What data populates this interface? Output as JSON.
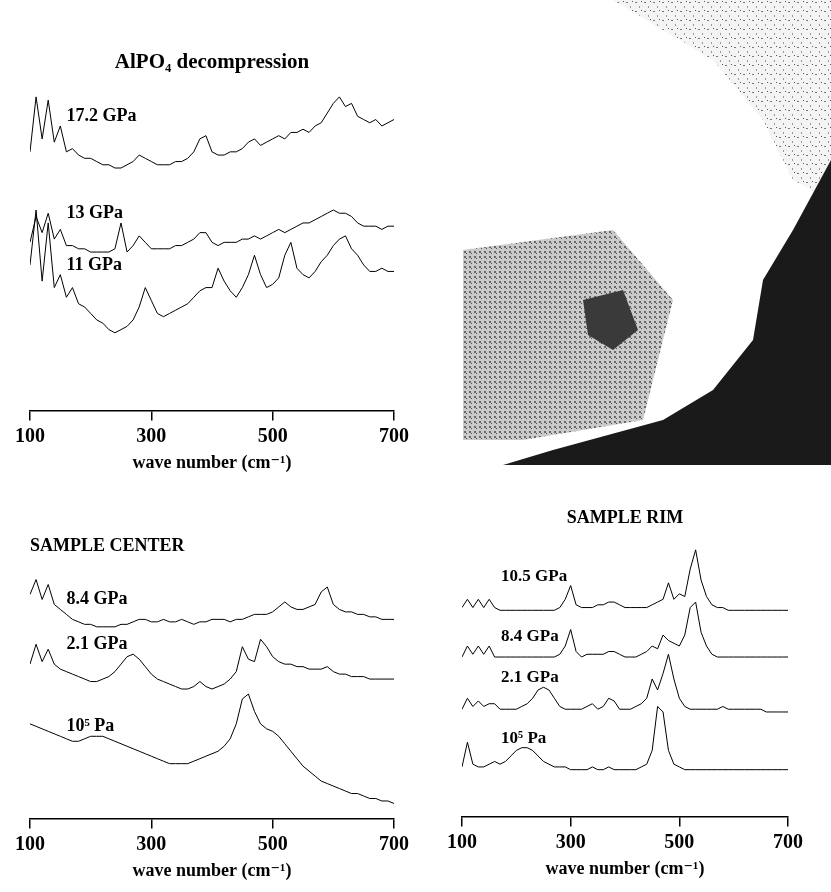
{
  "chart_data": [
    {
      "type": "line",
      "title": "AlPO₄ decompression",
      "x_label": "wave number (cm⁻¹)",
      "x": [
        100,
        110,
        120,
        130,
        140,
        150,
        160,
        170,
        180,
        190,
        200,
        210,
        220,
        230,
        240,
        250,
        260,
        270,
        280,
        290,
        300,
        310,
        320,
        330,
        340,
        350,
        360,
        370,
        380,
        390,
        400,
        410,
        420,
        430,
        440,
        450,
        460,
        470,
        480,
        490,
        500,
        510,
        520,
        530,
        540,
        550,
        560,
        570,
        580,
        590,
        600,
        610,
        620,
        630,
        640,
        650,
        660,
        670,
        680,
        690,
        700
      ],
      "series": [
        {
          "name": "17.2 GPa",
          "color": "#000000",
          "values": [
            80,
            97,
            84,
            96,
            83,
            88,
            80,
            81,
            79,
            78,
            78,
            77,
            76,
            76,
            75,
            75,
            76,
            77,
            79,
            78,
            77,
            76,
            76,
            76,
            77,
            77,
            78,
            80,
            84,
            85,
            80,
            79,
            79,
            80,
            80,
            81,
            83,
            84,
            82,
            83,
            84,
            85,
            84,
            86,
            86,
            87,
            86,
            88,
            89,
            92,
            95,
            97,
            94,
            95,
            91,
            90,
            89,
            90,
            88,
            89,
            90
          ]
        },
        {
          "name": "13 GPa",
          "color": "#000000",
          "values": [
            52,
            60,
            55,
            61,
            53,
            56,
            51,
            51,
            50,
            50,
            49,
            49,
            49,
            49,
            50,
            58,
            49,
            51,
            54,
            52,
            50,
            50,
            50,
            50,
            51,
            51,
            52,
            53,
            55,
            55,
            52,
            51,
            52,
            52,
            52,
            53,
            53,
            54,
            53,
            54,
            55,
            56,
            55,
            56,
            57,
            58,
            58,
            59,
            60,
            61,
            62,
            61,
            61,
            60,
            58,
            57,
            57,
            57,
            56,
            57,
            57
          ]
        },
        {
          "name": "11 GPa",
          "color": "#000000",
          "values": [
            45,
            62,
            40,
            58,
            38,
            42,
            35,
            38,
            33,
            32,
            30,
            28,
            27,
            25,
            24,
            25,
            26,
            28,
            32,
            38,
            34,
            30,
            29,
            30,
            31,
            32,
            33,
            35,
            37,
            38,
            38,
            44,
            40,
            37,
            35,
            38,
            42,
            48,
            42,
            38,
            39,
            41,
            48,
            52,
            44,
            42,
            41,
            43,
            46,
            48,
            51,
            53,
            54,
            50,
            48,
            45,
            43,
            43,
            44,
            43,
            43
          ]
        }
      ],
      "xlim": [
        100,
        700
      ],
      "xticks": [
        100,
        300,
        500,
        700
      ],
      "ylim": [
        0,
        100
      ],
      "tick_labels": "x",
      "grid": false
    },
    {
      "type": "line",
      "title": "SAMPLE CENTER",
      "x_label": "wave number (cm⁻¹)",
      "x": [
        100,
        110,
        120,
        130,
        140,
        150,
        160,
        170,
        180,
        190,
        200,
        210,
        220,
        230,
        240,
        250,
        260,
        270,
        280,
        290,
        300,
        310,
        320,
        330,
        340,
        350,
        360,
        370,
        380,
        390,
        400,
        410,
        420,
        430,
        440,
        450,
        460,
        470,
        480,
        490,
        500,
        510,
        520,
        530,
        540,
        550,
        560,
        570,
        580,
        590,
        600,
        610,
        620,
        630,
        640,
        650,
        660,
        670,
        680,
        690,
        700
      ],
      "series": [
        {
          "name": "8.4 GPa",
          "color": "#000000",
          "values": [
            90,
            96,
            88,
            94,
            86,
            84,
            82,
            80,
            79,
            78,
            78,
            77,
            77,
            77,
            77,
            78,
            78,
            79,
            80,
            80,
            79,
            79,
            80,
            79,
            79,
            80,
            79,
            78,
            79,
            79,
            80,
            80,
            80,
            79,
            80,
            80,
            81,
            82,
            82,
            82,
            83,
            85,
            87,
            85,
            84,
            84,
            85,
            86,
            91,
            93,
            86,
            84,
            83,
            83,
            82,
            82,
            81,
            81,
            80,
            80,
            80
          ]
        },
        {
          "name": "2.1 GPa",
          "color": "#000000",
          "values": [
            62,
            70,
            63,
            68,
            62,
            60,
            59,
            58,
            57,
            56,
            55,
            55,
            56,
            57,
            59,
            62,
            65,
            66,
            64,
            61,
            58,
            56,
            55,
            54,
            53,
            52,
            52,
            53,
            55,
            53,
            52,
            53,
            54,
            56,
            59,
            69,
            64,
            63,
            72,
            69,
            65,
            63,
            62,
            62,
            61,
            61,
            60,
            60,
            60,
            61,
            59,
            58,
            58,
            57,
            57,
            57,
            56,
            56,
            56,
            56,
            56
          ]
        },
        {
          "name": "10⁵ Pa",
          "color": "#000000",
          "values": [
            38,
            37,
            36,
            35,
            34,
            33,
            32,
            31,
            31,
            32,
            33,
            33,
            33,
            32,
            31,
            30,
            29,
            28,
            27,
            26,
            25,
            24,
            23,
            22,
            22,
            22,
            22,
            23,
            24,
            25,
            26,
            27,
            29,
            32,
            38,
            48,
            50,
            43,
            38,
            36,
            35,
            33,
            30,
            27,
            24,
            21,
            19,
            17,
            15,
            14,
            13,
            12,
            11,
            10,
            10,
            9,
            8,
            8,
            7,
            7,
            6
          ]
        }
      ],
      "xlim": [
        100,
        700
      ],
      "xticks": [
        100,
        300,
        500,
        700
      ],
      "ylim": [
        0,
        100
      ],
      "tick_labels": "x",
      "grid": false
    },
    {
      "type": "line",
      "title": "SAMPLE RIM",
      "x_label": "wave number (cm⁻¹)",
      "x": [
        100,
        110,
        120,
        130,
        140,
        150,
        160,
        170,
        180,
        190,
        200,
        210,
        220,
        230,
        240,
        250,
        260,
        270,
        280,
        290,
        300,
        310,
        320,
        330,
        340,
        350,
        360,
        370,
        380,
        390,
        400,
        410,
        420,
        430,
        440,
        450,
        460,
        470,
        480,
        490,
        500,
        510,
        520,
        530,
        540,
        550,
        560,
        570,
        580,
        590,
        600,
        610,
        620,
        630,
        640,
        650,
        660,
        670,
        680,
        690,
        700
      ],
      "series": [
        {
          "name": "10.5 GPa",
          "color": "#000000",
          "values": [
            76,
            79,
            76,
            79,
            76,
            79,
            76,
            75,
            75,
            75,
            75,
            75,
            75,
            75,
            75,
            75,
            75,
            75,
            76,
            79,
            84,
            77,
            76,
            76,
            76,
            77,
            77,
            78,
            78,
            77,
            76,
            76,
            76,
            76,
            76,
            77,
            78,
            79,
            85,
            79,
            81,
            80,
            90,
            97,
            86,
            80,
            77,
            76,
            76,
            75,
            75,
            75,
            75,
            75,
            75,
            75,
            75,
            75,
            75,
            75,
            75
          ]
        },
        {
          "name": "8.4 GPa",
          "color": "#000000",
          "values": [
            58,
            62,
            59,
            62,
            59,
            62,
            58,
            58,
            58,
            58,
            58,
            58,
            58,
            58,
            58,
            58,
            58,
            58,
            59,
            62,
            68,
            60,
            58,
            59,
            59,
            59,
            59,
            60,
            60,
            59,
            58,
            58,
            58,
            59,
            60,
            62,
            61,
            66,
            64,
            63,
            62,
            66,
            76,
            78,
            67,
            62,
            59,
            58,
            58,
            58,
            58,
            58,
            58,
            58,
            58,
            58,
            58,
            58,
            58,
            58,
            58
          ]
        },
        {
          "name": "2.1 GPa",
          "color": "#000000",
          "values": [
            39,
            43,
            40,
            42,
            40,
            41,
            41,
            39,
            39,
            39,
            39,
            40,
            41,
            43,
            46,
            47,
            46,
            43,
            40,
            39,
            39,
            39,
            39,
            40,
            41,
            39,
            40,
            43,
            42,
            39,
            39,
            39,
            40,
            41,
            43,
            50,
            46,
            52,
            59,
            50,
            43,
            40,
            39,
            39,
            39,
            39,
            39,
            39,
            40,
            39,
            39,
            39,
            39,
            39,
            39,
            39,
            38,
            38,
            38,
            38,
            38
          ]
        },
        {
          "name": "10⁵ Pa",
          "color": "#000000",
          "values": [
            18,
            27,
            19,
            18,
            18,
            19,
            20,
            19,
            20,
            22,
            24,
            25,
            25,
            24,
            22,
            20,
            19,
            18,
            18,
            18,
            17,
            17,
            17,
            17,
            18,
            17,
            17,
            18,
            17,
            17,
            17,
            17,
            17,
            18,
            19,
            24,
            40,
            38,
            24,
            19,
            18,
            17,
            17,
            17,
            17,
            17,
            17,
            17,
            17,
            17,
            17,
            17,
            17,
            17,
            17,
            17,
            17,
            17,
            17,
            17,
            17
          ]
        }
      ],
      "xlim": [
        100,
        700
      ],
      "xticks": [
        100,
        300,
        500,
        700
      ],
      "ylim": [
        0,
        100
      ],
      "tick_labels": "x",
      "grid": false
    }
  ]
}
